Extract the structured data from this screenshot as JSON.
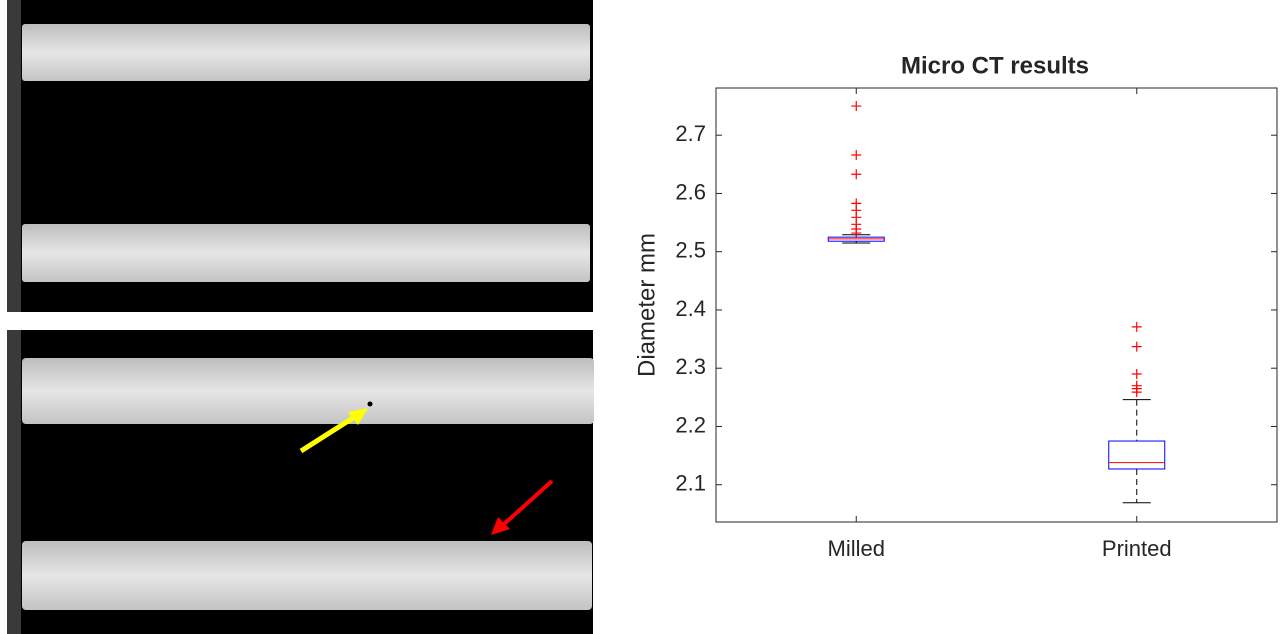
{
  "chart_data": {
    "type": "box",
    "title": "Micro CT results",
    "ylabel": "Diameter mm",
    "categories": [
      "Milled",
      "Printed"
    ],
    "boxes": [
      {
        "whisker_low": 2.515,
        "q1": 2.518,
        "median": 2.522,
        "q3": 2.525,
        "whisker_high": 2.529,
        "outliers": [
          2.75,
          2.666,
          2.633,
          2.583,
          2.571,
          2.559,
          2.547,
          2.539,
          2.532
        ]
      },
      {
        "whisker_low": 2.069,
        "q1": 2.127,
        "median": 2.138,
        "q3": 2.175,
        "whisker_high": 2.246,
        "outliers": [
          2.371,
          2.337,
          2.29,
          2.27,
          2.265,
          2.259
        ]
      }
    ],
    "box_color": "#0000ff",
    "median_color": "#ff0000",
    "outlier_color": "#ff0000",
    "whisker_color": "#000000",
    "xlim": [
      0.5,
      2.5
    ],
    "ylim": [
      2.036,
      2.781
    ],
    "yticks": [
      2.1,
      2.2,
      2.3,
      2.4,
      2.5,
      2.6,
      2.7
    ]
  }
}
